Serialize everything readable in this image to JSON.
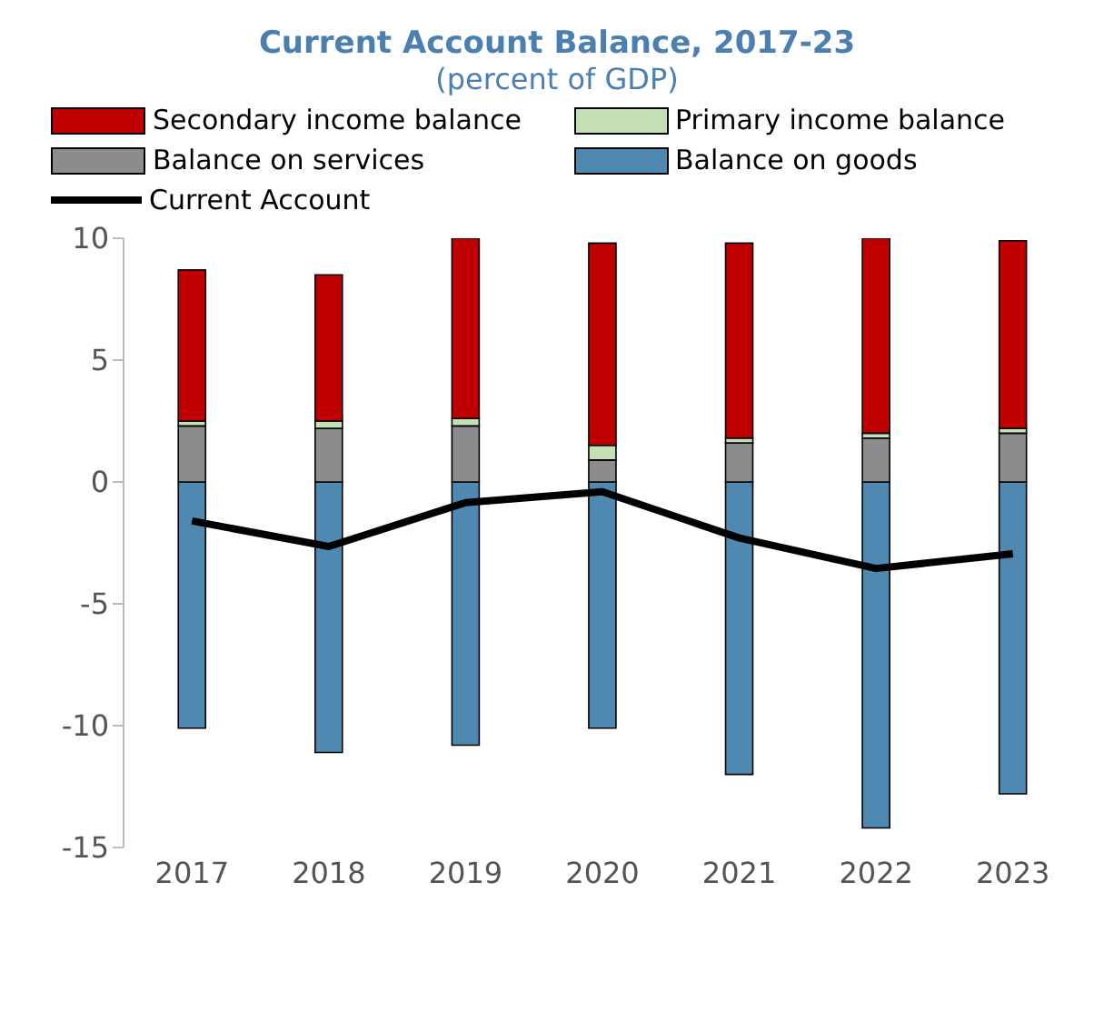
{
  "chart_data": {
    "type": "bar",
    "title": "Current Account Balance, 2017-23",
    "subtitle": "(percent of GDP)",
    "categories": [
      "2017",
      "2018",
      "2019",
      "2020",
      "2021",
      "2022",
      "2023"
    ],
    "stacked": true,
    "series": [
      {
        "name": "Balance on goods",
        "color": "#4f88b0",
        "values": [
          -10.1,
          -11.1,
          -10.8,
          -10.1,
          -12.0,
          -14.2,
          -12.8
        ]
      },
      {
        "name": "Balance on services",
        "color": "#8c8c8c",
        "values": [
          2.3,
          2.2,
          2.3,
          0.9,
          1.6,
          1.8,
          2.0
        ]
      },
      {
        "name": "Primary income balance",
        "color": "#c5e0b4",
        "values": [
          0.2,
          0.3,
          0.3,
          0.6,
          0.2,
          0.2,
          0.2
        ]
      },
      {
        "name": "Secondary income balance",
        "color": "#c00000",
        "values": [
          6.2,
          6.0,
          7.4,
          8.3,
          8.0,
          8.0,
          7.7
        ]
      },
      {
        "name": "Current Account",
        "type": "line",
        "color": "#000000",
        "values": [
          -1.6,
          -2.65,
          -0.85,
          -0.4,
          -2.3,
          -3.55,
          -2.95
        ]
      }
    ],
    "ylim": [
      -15,
      10
    ],
    "yticks": [
      -15,
      -10,
      -5,
      0,
      5,
      10
    ],
    "grid": false,
    "legend": "top",
    "marker": "none"
  }
}
